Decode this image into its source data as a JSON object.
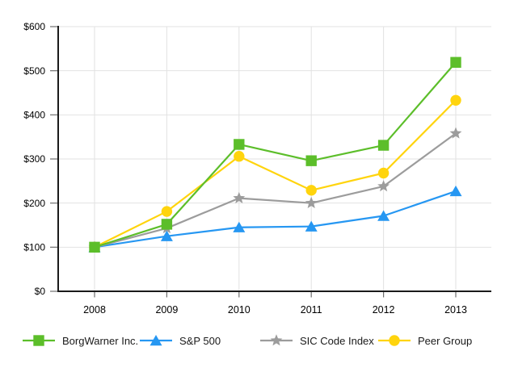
{
  "chart_data": {
    "type": "line",
    "title": "",
    "categories": [
      "2008",
      "2009",
      "2010",
      "2011",
      "2012",
      "2013"
    ],
    "series": [
      {
        "name": "BorgWarner Inc.",
        "marker": "square",
        "color": "#5cbe2a",
        "values": [
          100,
          152,
          333,
          296,
          331,
          519
        ]
      },
      {
        "name": "S&P 500",
        "marker": "triangle",
        "color": "#2697f2",
        "values": [
          100,
          125,
          145,
          147,
          171,
          227
        ]
      },
      {
        "name": "SIC Code Index",
        "marker": "star",
        "color": "#9c9c9c",
        "values": [
          100,
          143,
          211,
          200,
          238,
          358
        ]
      },
      {
        "name": "Peer Group",
        "marker": "circle",
        "color": "#ffd40d",
        "values": [
          100,
          181,
          306,
          229,
          268,
          433
        ]
      }
    ],
    "ylim": [
      0,
      600
    ],
    "ytick_step": 100,
    "ytick_labels": [
      "$0",
      "$100",
      "$200",
      "$300",
      "$400",
      "$500",
      "$600"
    ],
    "grid": true,
    "legend_position": "bottom",
    "colors": {
      "grid": "#e2e2e2",
      "axis": "#1a1a1a",
      "tick": "#6e6e6e",
      "text": "#000000"
    }
  }
}
